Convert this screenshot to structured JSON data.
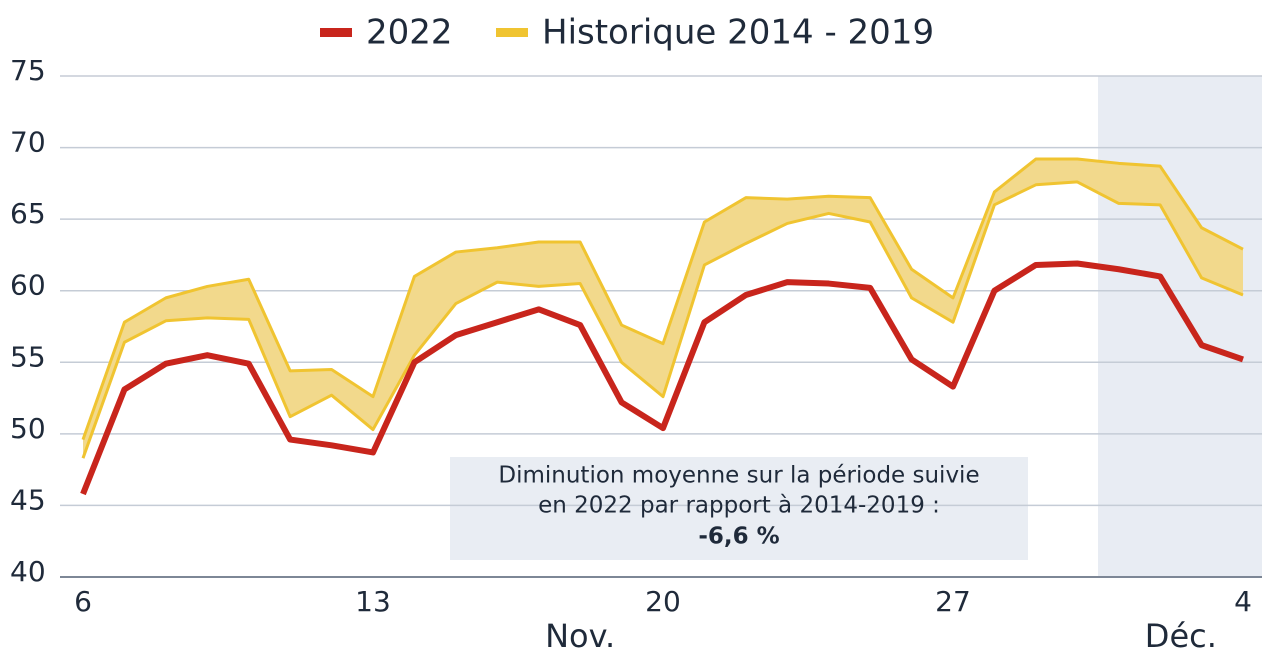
{
  "chart_data": {
    "type": "line",
    "categories": [
      "6",
      null,
      null,
      null,
      null,
      null,
      null,
      "13",
      null,
      null,
      null,
      null,
      null,
      null,
      "20",
      null,
      null,
      null,
      null,
      null,
      null,
      "27",
      null,
      null,
      null,
      null,
      null,
      null,
      "4"
    ],
    "months": [
      {
        "label": "Nov.",
        "from": 0,
        "to": 24
      },
      {
        "label": "Déc.",
        "from": 25,
        "to": 28
      }
    ],
    "series": [
      {
        "name": "2022",
        "color": "#c8251c",
        "values": [
          45.8,
          53.1,
          54.9,
          55.5,
          54.9,
          49.6,
          49.2,
          48.7,
          55.0,
          56.9,
          57.8,
          58.7,
          57.6,
          52.2,
          50.4,
          57.8,
          59.7,
          60.6,
          60.5,
          60.2,
          55.2,
          53.3,
          60.0,
          61.8,
          61.9,
          61.5,
          61.0,
          56.2,
          55.2
        ]
      },
      {
        "name": "Historique 2014 - 2019",
        "color": "#f0c431",
        "fill": "#f2d98c",
        "upper": [
          49.6,
          57.8,
          59.5,
          60.3,
          60.8,
          54.4,
          54.5,
          52.6,
          61.0,
          62.7,
          63.0,
          63.4,
          63.4,
          57.6,
          56.3,
          64.8,
          66.5,
          66.4,
          66.6,
          66.5,
          61.5,
          59.5,
          66.9,
          69.2,
          69.2,
          68.9,
          68.7,
          64.4,
          62.9
        ],
        "lower": [
          48.3,
          56.4,
          57.9,
          58.1,
          58.0,
          51.2,
          52.7,
          50.3,
          55.5,
          59.1,
          60.6,
          60.3,
          60.5,
          55.0,
          52.6,
          61.8,
          63.3,
          64.7,
          65.4,
          64.8,
          59.5,
          57.8,
          66.0,
          67.4,
          67.6,
          66.1,
          66.0,
          60.9,
          59.7
        ]
      }
    ],
    "ylim": [
      40,
      75
    ],
    "yticks": [
      40,
      45,
      50,
      55,
      60,
      65,
      70,
      75
    ],
    "grid": true,
    "annotation": {
      "lines": [
        "Diminution moyenne sur la période suivie",
        "en 2022 par rapport à 2014-2019 :"
      ],
      "value": "-6,6 %"
    }
  }
}
